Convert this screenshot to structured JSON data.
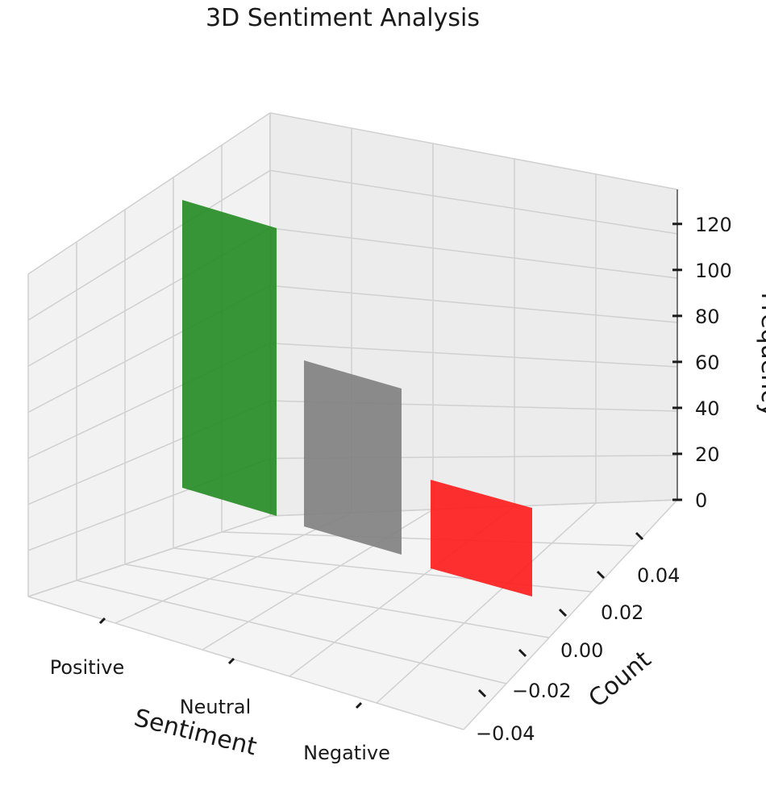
{
  "chart_data": {
    "type": "bar",
    "title": "3D Sentiment Analysis",
    "categories": [
      "Positive",
      "Neutral",
      "Negative"
    ],
    "values": [
      130,
      75,
      40
    ],
    "colors": [
      "#228b22",
      "#808080",
      "#ff1a1a"
    ],
    "xlabel": "Sentiment",
    "ylabel": "Count",
    "zlabel": "Frequency",
    "y_ticks": [
      "0.04",
      "0.02",
      "0.00",
      "−0.02",
      "−0.04"
    ],
    "z_ticks": [
      "0",
      "20",
      "40",
      "60",
      "80",
      "100",
      "120"
    ],
    "zlim": [
      0,
      135
    ],
    "grid": true,
    "projection": "3d"
  }
}
